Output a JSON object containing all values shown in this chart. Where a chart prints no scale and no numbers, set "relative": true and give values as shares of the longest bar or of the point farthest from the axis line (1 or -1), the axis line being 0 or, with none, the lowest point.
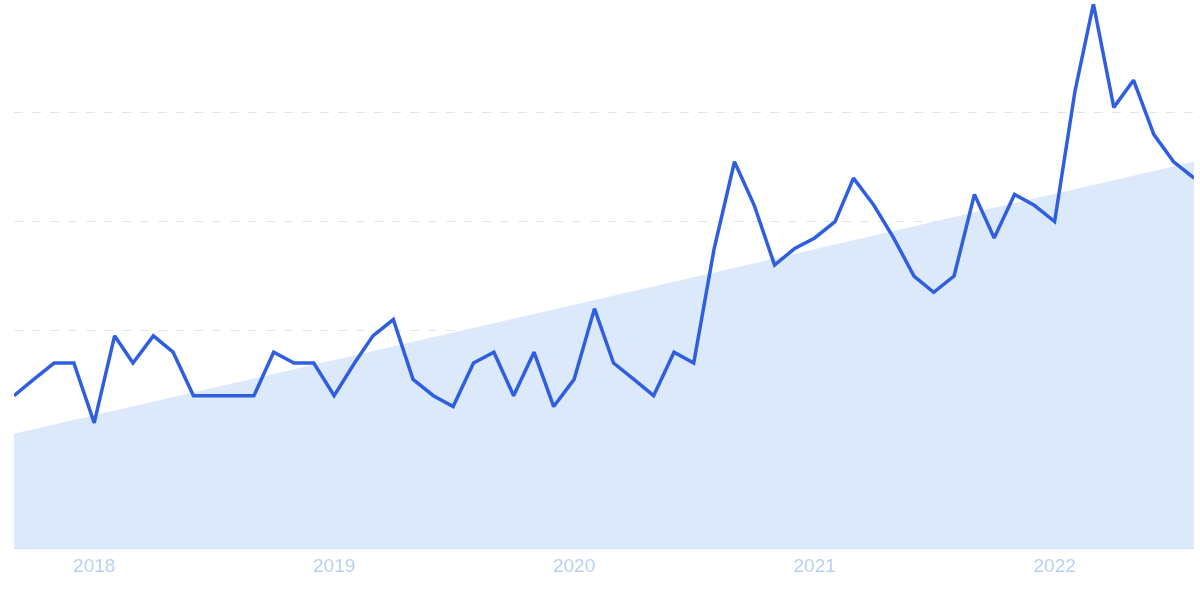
{
  "chart_data": {
    "type": "line",
    "relative": true,
    "grid": "y",
    "marker": "none",
    "line_style": "solid",
    "x": [
      "2017-09",
      "2017-10",
      "2017-11",
      "2017-12",
      "2018-01",
      "2018-02",
      "2018-03",
      "2018-04",
      "2018-05",
      "2018-06",
      "2018-07",
      "2018-08",
      "2018-09",
      "2018-10",
      "2018-11",
      "2018-12",
      "2019-01",
      "2019-02",
      "2019-03",
      "2019-04",
      "2019-05",
      "2019-06",
      "2019-07",
      "2019-08",
      "2019-09",
      "2019-10",
      "2019-11",
      "2019-12",
      "2020-01",
      "2020-02",
      "2020-03",
      "2020-04",
      "2020-05",
      "2020-06",
      "2020-07",
      "2020-08",
      "2020-09",
      "2020-10",
      "2020-11",
      "2020-12",
      "2021-01",
      "2021-02",
      "2021-03",
      "2021-04",
      "2021-05",
      "2021-06",
      "2021-07",
      "2021-08",
      "2021-09",
      "2021-10",
      "2021-11",
      "2021-12",
      "2022-01",
      "2022-02",
      "2022-03",
      "2022-04",
      "2022-05",
      "2022-06",
      "2022-07",
      "2022-08"
    ],
    "xlim": [
      "2017-09",
      "2022-08"
    ],
    "xticks": [
      {
        "value": "2018-01",
        "label": "2018"
      },
      {
        "value": "2019-01",
        "label": "2019"
      },
      {
        "value": "2020-01",
        "label": "2020"
      },
      {
        "value": "2021-01",
        "label": "2021"
      },
      {
        "value": "2022-01",
        "label": "2022"
      }
    ],
    "series": [
      {
        "type": "area",
        "color": "#dce9fa",
        "x": [
          "2017-09",
          "2022-08"
        ],
        "values": [
          0.21,
          0.71
        ]
      },
      {
        "color": "#2f5fe0",
        "values": [
          0.28,
          0.31,
          0.34,
          0.34,
          0.23,
          0.39,
          0.34,
          0.39,
          0.36,
          0.28,
          0.28,
          0.28,
          0.28,
          0.36,
          0.34,
          0.34,
          0.28,
          0.34,
          0.39,
          0.42,
          0.31,
          0.28,
          0.26,
          0.34,
          0.36,
          0.28,
          0.36,
          0.26,
          0.31,
          0.44,
          0.34,
          0.31,
          0.28,
          0.36,
          0.34,
          0.55,
          0.71,
          0.63,
          0.52,
          0.55,
          0.57,
          0.6,
          0.68,
          0.63,
          0.57,
          0.5,
          0.47,
          0.5,
          0.65,
          0.57,
          0.65,
          0.63,
          0.6,
          0.84,
          1.0,
          0.81,
          0.86,
          0.76,
          0.71,
          0.68
        ]
      }
    ]
  }
}
